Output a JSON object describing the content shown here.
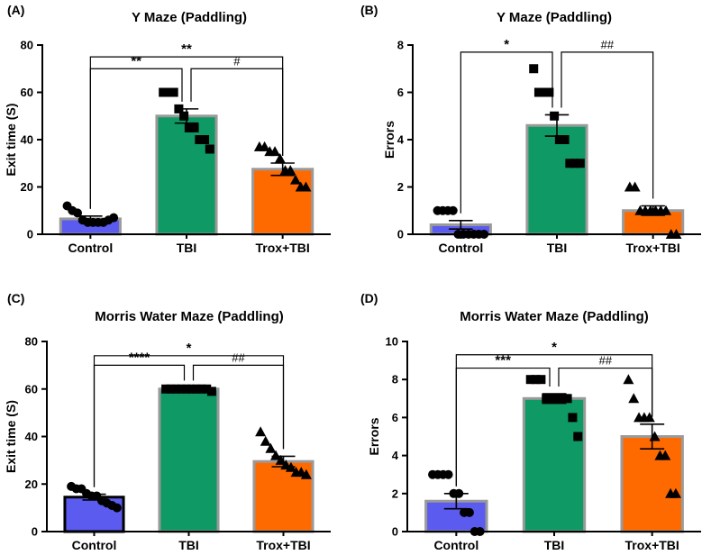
{
  "colors": {
    "control": "#5b5bf0",
    "tbi": "#0f9964",
    "trox": "#ff6a00",
    "bar_edge": "#9a9a9a",
    "ink": "#000000"
  },
  "chart_data": [
    {
      "id": "A",
      "panel_label": "(A)",
      "type": "bar",
      "title": "Y Maze (Paddling)",
      "ylabel": "Exit time (S)",
      "ylim": [
        0,
        80
      ],
      "yticks": [
        0,
        20,
        40,
        60,
        80
      ],
      "categories": [
        "Control",
        "TBI",
        "Trox+TBI"
      ],
      "values": [
        6.5,
        50,
        27.5
      ],
      "errors": [
        1.2,
        3,
        2.6
      ],
      "markers": [
        "circle",
        "square",
        "triangle"
      ],
      "points": [
        [
          12,
          10,
          9,
          6,
          5,
          5,
          5,
          5,
          6,
          7
        ],
        [
          60,
          60,
          60,
          53,
          50,
          45,
          45,
          40,
          40,
          36
        ],
        [
          37,
          37,
          35,
          35,
          32,
          27,
          27,
          23,
          20,
          20
        ]
      ],
      "comparisons": [
        {
          "from": 0,
          "to": 1,
          "level": 70,
          "label": "**"
        },
        {
          "from": 1,
          "to": 2,
          "level": 70,
          "label": "#"
        },
        {
          "from": 0,
          "to": 2,
          "level": 75,
          "label": "**"
        }
      ]
    },
    {
      "id": "B",
      "panel_label": "(B)",
      "type": "bar",
      "title": "Y Maze (Paddling)",
      "ylabel": "Errors",
      "ylim": [
        0,
        8
      ],
      "yticks": [
        0,
        2,
        4,
        6,
        8
      ],
      "categories": [
        "Control",
        "TBI",
        "Trox+TBI"
      ],
      "values": [
        0.4,
        4.6,
        1
      ],
      "errors": [
        0.18,
        0.45,
        0.2
      ],
      "markers": [
        "circle",
        "square",
        "triangle"
      ],
      "points": [
        [
          1,
          1,
          1,
          1,
          0,
          0,
          0,
          0,
          0,
          0
        ],
        [
          7,
          6,
          6,
          6,
          5,
          4,
          4,
          3,
          3,
          3
        ],
        [
          2,
          2,
          1,
          1,
          1,
          1,
          1,
          1,
          0,
          0
        ]
      ],
      "comparisons": [
        {
          "from": 0,
          "to": 1,
          "level": 7.7,
          "label": "*"
        },
        {
          "from": 1,
          "to": 2,
          "level": 7.7,
          "label": "##"
        }
      ]
    },
    {
      "id": "C",
      "panel_label": "(C)",
      "type": "bar",
      "title": "Morris Water Maze (Paddling)",
      "ylabel": "Exit time (S)",
      "ylim": [
        0,
        80
      ],
      "yticks": [
        0,
        20,
        40,
        60,
        80
      ],
      "categories": [
        "Control",
        "TBI",
        "Trox+TBI"
      ],
      "values": [
        14.5,
        60,
        29.5
      ],
      "errors": [
        1.2,
        0.5,
        2.2
      ],
      "markers": [
        "circle",
        "square",
        "triangle"
      ],
      "points": [
        [
          19,
          18,
          18,
          16,
          15,
          15,
          13,
          12,
          11,
          10
        ],
        [
          60,
          60,
          60,
          60,
          60,
          60,
          60,
          60,
          60,
          59
        ],
        [
          42,
          38,
          35,
          32,
          30,
          28,
          27,
          25,
          25,
          24
        ]
      ],
      "comparisons": [
        {
          "from": 0,
          "to": 1,
          "level": 70,
          "label": "****"
        },
        {
          "from": 1,
          "to": 2,
          "level": 70,
          "label": "##"
        },
        {
          "from": 0,
          "to": 2,
          "level": 74,
          "label": "*"
        }
      ]
    },
    {
      "id": "D",
      "panel_label": "(D)",
      "type": "bar",
      "title": "Morris Water Maze (Paddling)",
      "ylabel": "Errors",
      "ylim": [
        0,
        10
      ],
      "yticks": [
        0,
        2,
        4,
        6,
        8,
        10
      ],
      "categories": [
        "Control",
        "TBI",
        "Trox+TBI"
      ],
      "values": [
        1.6,
        7,
        5
      ],
      "errors": [
        0.4,
        0.25,
        0.65
      ],
      "markers": [
        "circle",
        "square",
        "triangle"
      ],
      "points": [
        [
          3,
          3,
          3,
          3,
          2,
          2,
          1,
          1,
          0,
          0
        ],
        [
          8,
          8,
          8,
          7,
          7,
          7,
          7,
          7,
          6,
          5
        ],
        [
          8,
          7,
          6,
          6,
          6,
          5,
          4,
          4,
          2,
          2
        ]
      ],
      "comparisons": [
        {
          "from": 0,
          "to": 1,
          "level": 8.6,
          "label": "***"
        },
        {
          "from": 1,
          "to": 2,
          "level": 8.6,
          "label": "##"
        },
        {
          "from": 0,
          "to": 2,
          "level": 9.3,
          "label": "*"
        }
      ]
    }
  ]
}
